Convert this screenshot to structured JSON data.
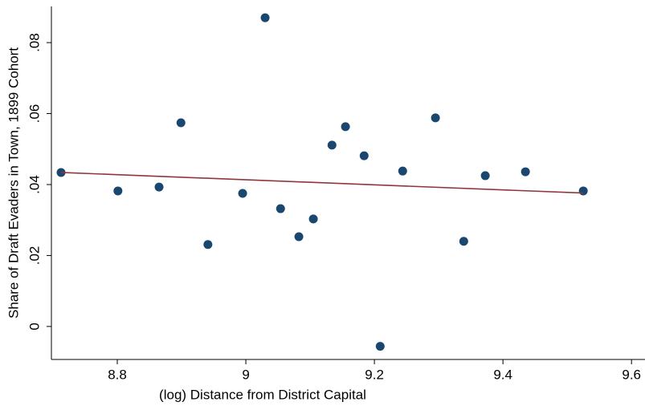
{
  "chart_data": {
    "type": "scatter",
    "xlabel": "(log) Distance from District Capital",
    "ylabel": "Share of Draft Evaders in Town, 1899 Cohort",
    "xlim": [
      8.6975,
      9.621
    ],
    "ylim": [
      -0.0093,
      0.0902
    ],
    "xticks": [
      8.8,
      9,
      9.2,
      9.4,
      9.6
    ],
    "yticks": [
      0,
      {
        "value": 0.02,
        "label": ".02"
      },
      {
        "value": 0.04,
        "label": ".04"
      },
      {
        "value": 0.06,
        "label": ".06"
      },
      {
        "value": 0.08,
        "label": ".08"
      }
    ],
    "grid": false,
    "series": [
      {
        "type": "scatter",
        "color": "#1a476f",
        "x": [
          8.7125,
          8.801,
          8.865,
          8.899,
          8.941,
          8.995,
          9.03,
          9.054,
          9.0825,
          9.105,
          9.134,
          9.155,
          9.184,
          9.209,
          9.244,
          9.295,
          9.339,
          9.3725,
          9.435,
          9.525
        ],
        "values": [
          0.0434,
          0.0382,
          0.0393,
          0.0574,
          0.0231,
          0.0375,
          0.087,
          0.0332,
          0.0253,
          0.0303,
          0.0511,
          0.0563,
          0.0481,
          -0.0056,
          0.0438,
          0.0588,
          0.024,
          0.0425,
          0.0436,
          0.0382
        ]
      },
      {
        "type": "line",
        "color": "#90353b",
        "x": [
          8.7125,
          9.525
        ],
        "values": [
          0.0434,
          0.0376
        ]
      }
    ]
  }
}
